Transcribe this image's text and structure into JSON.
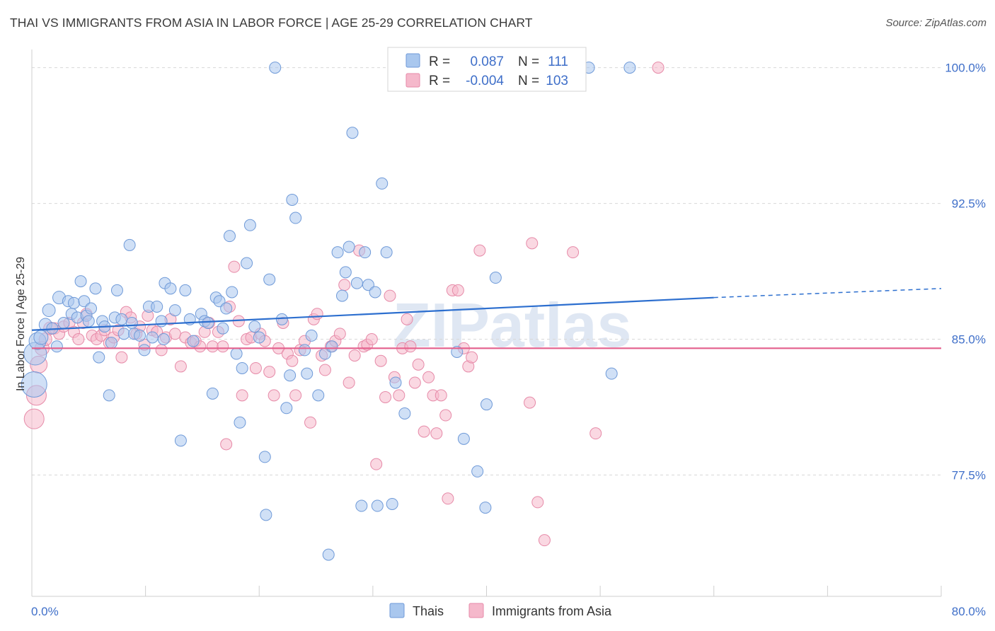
{
  "title": "THAI VS IMMIGRANTS FROM ASIA IN LABOR FORCE | AGE 25-29 CORRELATION CHART",
  "source": "Source: ZipAtlas.com",
  "watermark": "ZIPatlas",
  "colors": {
    "thai_fill": "#a9c7ee",
    "thai_stroke": "#6f9ad8",
    "thai_line": "#2d6fcf",
    "asia_fill": "#f5b8cb",
    "asia_stroke": "#e68aa8",
    "asia_line": "#e45f8c",
    "tick_label": "#3f6fc9",
    "grid": "#d8d8d8"
  },
  "legend": {
    "rows": [
      {
        "r_label": "R =",
        "r_value": "0.087",
        "n_label": "N =",
        "n_value": "111",
        "series": "thai"
      },
      {
        "r_label": "R =",
        "r_value": "-0.004",
        "n_label": "N =",
        "n_value": "103",
        "series": "asia"
      }
    ]
  },
  "bottom_legend": [
    "Thais",
    "Immigrants from Asia"
  ],
  "chart_data": {
    "type": "scatter",
    "title": "THAI VS IMMIGRANTS FROM ASIA IN LABOR FORCE | AGE 25-29 CORRELATION CHART",
    "xlabel": "",
    "ylabel": "In Labor Force | Age 25-29",
    "xlim": [
      0,
      80
    ],
    "ylim": [
      70.8,
      101
    ],
    "x_tick_labels": [
      "0.0%",
      "80.0%"
    ],
    "y_ticks": [
      77.5,
      85.0,
      92.5,
      100.0
    ],
    "y_tick_labels": [
      "77.5%",
      "85.0%",
      "92.5%",
      "100.0%"
    ],
    "grid": true,
    "legend_position": "top-center",
    "series": [
      {
        "name": "Thais",
        "trend": {
          "x0": 0,
          "y0": 85.5,
          "x1": 60,
          "y1": 87.3,
          "dash_to_x": 80,
          "dash_to_y": 87.8
        },
        "points": [
          [
            0.2,
            82.5,
            18
          ],
          [
            0.3,
            84.2,
            16
          ],
          [
            0.5,
            84.9,
            12
          ],
          [
            0.8,
            85.1,
            10
          ],
          [
            1.2,
            85.8,
            9
          ],
          [
            1.5,
            86.6,
            9
          ],
          [
            1.8,
            85.6,
            8
          ],
          [
            2.2,
            84.6,
            8
          ],
          [
            2.4,
            87.3,
            9
          ],
          [
            2.8,
            85.9,
            8
          ],
          [
            3.2,
            87.1,
            8
          ],
          [
            3.5,
            86.4,
            8
          ],
          [
            3.7,
            87.0,
            8
          ],
          [
            4.0,
            86.2,
            8
          ],
          [
            4.3,
            88.2,
            8
          ],
          [
            4.6,
            87.1,
            8
          ],
          [
            4.8,
            86.3,
            8
          ],
          [
            5.0,
            86.0,
            8
          ],
          [
            5.2,
            86.7,
            8
          ],
          [
            5.6,
            87.8,
            8
          ],
          [
            5.9,
            84.0,
            8
          ],
          [
            6.2,
            86.0,
            8
          ],
          [
            6.4,
            85.7,
            8
          ],
          [
            6.8,
            81.9,
            8
          ],
          [
            7.0,
            84.8,
            8
          ],
          [
            7.3,
            86.2,
            8
          ],
          [
            7.5,
            87.7,
            8
          ],
          [
            7.9,
            86.1,
            8
          ],
          [
            8.1,
            85.3,
            8
          ],
          [
            8.6,
            90.2,
            8
          ],
          [
            8.8,
            85.9,
            8
          ],
          [
            9.0,
            85.3,
            8
          ],
          [
            9.5,
            85.2,
            8
          ],
          [
            9.9,
            84.4,
            8
          ],
          [
            10.3,
            86.8,
            8
          ],
          [
            10.6,
            85.1,
            8
          ],
          [
            11.0,
            86.8,
            8
          ],
          [
            11.4,
            86.0,
            8
          ],
          [
            11.6,
            85.0,
            8
          ],
          [
            11.7,
            88.1,
            8
          ],
          [
            12.2,
            87.8,
            8
          ],
          [
            12.6,
            86.6,
            8
          ],
          [
            13.1,
            79.4,
            8
          ],
          [
            13.5,
            87.7,
            8
          ],
          [
            13.9,
            86.1,
            8
          ],
          [
            14.2,
            84.9,
            8
          ],
          [
            14.9,
            86.4,
            8
          ],
          [
            15.2,
            86.0,
            8
          ],
          [
            15.5,
            85.9,
            8
          ],
          [
            15.9,
            82.0,
            8
          ],
          [
            16.2,
            87.3,
            8
          ],
          [
            16.5,
            87.1,
            8
          ],
          [
            16.8,
            85.6,
            8
          ],
          [
            17.1,
            86.7,
            8
          ],
          [
            17.4,
            90.7,
            8
          ],
          [
            17.6,
            87.6,
            8
          ],
          [
            18.0,
            84.2,
            8
          ],
          [
            18.3,
            80.4,
            8
          ],
          [
            18.5,
            83.4,
            8
          ],
          [
            18.9,
            89.2,
            8
          ],
          [
            19.2,
            91.3,
            8
          ],
          [
            19.6,
            85.7,
            8
          ],
          [
            20.0,
            85.1,
            8
          ],
          [
            20.5,
            78.5,
            8
          ],
          [
            20.6,
            75.3,
            8
          ],
          [
            20.9,
            88.3,
            8
          ],
          [
            21.4,
            100.0,
            8
          ],
          [
            22.0,
            86.1,
            8
          ],
          [
            22.4,
            81.2,
            8
          ],
          [
            22.7,
            83.0,
            8
          ],
          [
            22.9,
            92.7,
            8
          ],
          [
            23.2,
            91.7,
            8
          ],
          [
            24.0,
            84.4,
            8
          ],
          [
            24.2,
            83.1,
            8
          ],
          [
            24.6,
            85.2,
            8
          ],
          [
            25.2,
            81.9,
            8
          ],
          [
            25.8,
            84.2,
            8
          ],
          [
            26.1,
            73.1,
            8
          ],
          [
            26.4,
            84.6,
            8
          ],
          [
            26.9,
            89.8,
            8
          ],
          [
            27.3,
            87.4,
            8
          ],
          [
            27.6,
            88.7,
            8
          ],
          [
            27.9,
            90.1,
            8
          ],
          [
            28.2,
            96.4,
            8
          ],
          [
            28.6,
            88.1,
            8
          ],
          [
            29.0,
            75.8,
            8
          ],
          [
            29.3,
            89.8,
            8
          ],
          [
            29.6,
            88.0,
            8
          ],
          [
            30.2,
            87.6,
            8
          ],
          [
            30.4,
            75.8,
            8
          ],
          [
            30.8,
            93.6,
            8
          ],
          [
            31.2,
            89.8,
            8
          ],
          [
            31.7,
            75.9,
            8
          ],
          [
            32.0,
            82.6,
            8
          ],
          [
            32.8,
            80.9,
            8
          ],
          [
            38.0,
            79.5,
            8
          ],
          [
            39.2,
            77.7,
            8
          ],
          [
            39.9,
            75.7,
            8
          ],
          [
            40.0,
            81.4,
            8
          ],
          [
            40.8,
            88.4,
            8
          ],
          [
            49.0,
            100.0,
            8
          ],
          [
            51.0,
            83.1,
            8
          ],
          [
            52.6,
            100.0,
            8
          ],
          [
            37.4,
            84.3,
            8
          ]
        ]
      },
      {
        "name": "Immigrants from Asia",
        "trend": {
          "x0": 0,
          "y0": 84.5,
          "x1": 80,
          "y1": 84.5
        },
        "points": [
          [
            0.2,
            80.6,
            14
          ],
          [
            0.4,
            81.9,
            14
          ],
          [
            0.6,
            83.6,
            12
          ],
          [
            0.9,
            84.5,
            10
          ],
          [
            1.2,
            85.0,
            9
          ],
          [
            1.6,
            85.6,
            9
          ],
          [
            2.0,
            85.6,
            8
          ],
          [
            2.4,
            85.3,
            8
          ],
          [
            2.8,
            85.7,
            8
          ],
          [
            3.3,
            85.9,
            8
          ],
          [
            3.7,
            85.4,
            8
          ],
          [
            4.1,
            85.0,
            8
          ],
          [
            4.5,
            85.9,
            8
          ],
          [
            4.8,
            86.4,
            8
          ],
          [
            5.3,
            85.2,
            8
          ],
          [
            5.7,
            85.0,
            8
          ],
          [
            6.1,
            85.2,
            8
          ],
          [
            6.4,
            85.5,
            8
          ],
          [
            6.8,
            84.8,
            8
          ],
          [
            7.2,
            85.1,
            8
          ],
          [
            7.6,
            85.5,
            8
          ],
          [
            7.9,
            84.0,
            8
          ],
          [
            8.3,
            86.5,
            8
          ],
          [
            8.7,
            86.2,
            8
          ],
          [
            9.2,
            85.3,
            8
          ],
          [
            9.5,
            85.7,
            8
          ],
          [
            9.9,
            84.7,
            8
          ],
          [
            10.2,
            86.3,
            8
          ],
          [
            10.6,
            85.5,
            8
          ],
          [
            11.0,
            85.4,
            8
          ],
          [
            11.4,
            84.4,
            8
          ],
          [
            11.8,
            85.1,
            8
          ],
          [
            12.2,
            86.1,
            8
          ],
          [
            12.6,
            85.3,
            8
          ],
          [
            13.1,
            83.5,
            8
          ],
          [
            13.5,
            85.1,
            8
          ],
          [
            14.0,
            84.8,
            8
          ],
          [
            14.4,
            84.9,
            8
          ],
          [
            14.8,
            84.6,
            8
          ],
          [
            15.2,
            85.4,
            8
          ],
          [
            15.6,
            85.9,
            8
          ],
          [
            15.9,
            84.6,
            8
          ],
          [
            16.4,
            85.4,
            8
          ],
          [
            16.8,
            84.6,
            8
          ],
          [
            17.1,
            79.2,
            8
          ],
          [
            17.4,
            86.8,
            8
          ],
          [
            17.8,
            89.0,
            8
          ],
          [
            18.2,
            86.0,
            8
          ],
          [
            18.5,
            81.9,
            8
          ],
          [
            18.9,
            85.0,
            8
          ],
          [
            19.3,
            85.1,
            8
          ],
          [
            19.7,
            83.4,
            8
          ],
          [
            20.1,
            85.3,
            8
          ],
          [
            20.5,
            84.9,
            8
          ],
          [
            20.9,
            83.2,
            8
          ],
          [
            21.3,
            81.9,
            8
          ],
          [
            21.7,
            84.5,
            8
          ],
          [
            22.1,
            85.9,
            8
          ],
          [
            22.5,
            84.2,
            8
          ],
          [
            22.9,
            83.8,
            8
          ],
          [
            23.2,
            81.9,
            8
          ],
          [
            23.6,
            84.4,
            8
          ],
          [
            24.0,
            84.9,
            8
          ],
          [
            24.5,
            80.4,
            8
          ],
          [
            24.8,
            86.1,
            8
          ],
          [
            25.1,
            86.4,
            8
          ],
          [
            25.5,
            84.1,
            8
          ],
          [
            25.8,
            83.3,
            8
          ],
          [
            26.3,
            84.6,
            8
          ],
          [
            26.7,
            84.9,
            8
          ],
          [
            27.1,
            85.3,
            8
          ],
          [
            27.5,
            88.0,
            8
          ],
          [
            27.9,
            82.6,
            8
          ],
          [
            28.4,
            84.1,
            8
          ],
          [
            28.8,
            89.9,
            8
          ],
          [
            29.2,
            84.6,
            8
          ],
          [
            29.5,
            84.7,
            8
          ],
          [
            29.9,
            85.0,
            8
          ],
          [
            30.3,
            78.1,
            8
          ],
          [
            30.7,
            83.8,
            8
          ],
          [
            31.1,
            81.8,
            8
          ],
          [
            31.5,
            87.4,
            8
          ],
          [
            31.9,
            82.9,
            8
          ],
          [
            32.3,
            81.9,
            8
          ],
          [
            32.6,
            84.5,
            8
          ],
          [
            33.0,
            86.1,
            8
          ],
          [
            33.3,
            84.6,
            8
          ],
          [
            33.7,
            82.6,
            8
          ],
          [
            34.0,
            83.6,
            8
          ],
          [
            34.5,
            79.9,
            8
          ],
          [
            34.9,
            82.9,
            8
          ],
          [
            35.3,
            81.9,
            8
          ],
          [
            35.6,
            79.8,
            8
          ],
          [
            36.0,
            81.9,
            8
          ],
          [
            36.4,
            80.8,
            8
          ],
          [
            36.6,
            76.2,
            8
          ],
          [
            37.0,
            87.7,
            8
          ],
          [
            37.5,
            87.7,
            8
          ],
          [
            38.0,
            84.5,
            8
          ],
          [
            38.4,
            83.5,
            8
          ],
          [
            38.7,
            84.0,
            8
          ],
          [
            39.4,
            89.9,
            8
          ],
          [
            43.8,
            81.5,
            8
          ],
          [
            44.0,
            90.3,
            8
          ],
          [
            44.5,
            76.0,
            8
          ],
          [
            45.1,
            73.9,
            8
          ],
          [
            45.5,
            100.0,
            8
          ],
          [
            47.6,
            89.8,
            8
          ],
          [
            49.6,
            79.8,
            8
          ],
          [
            55.1,
            100.0,
            8
          ]
        ]
      }
    ]
  }
}
